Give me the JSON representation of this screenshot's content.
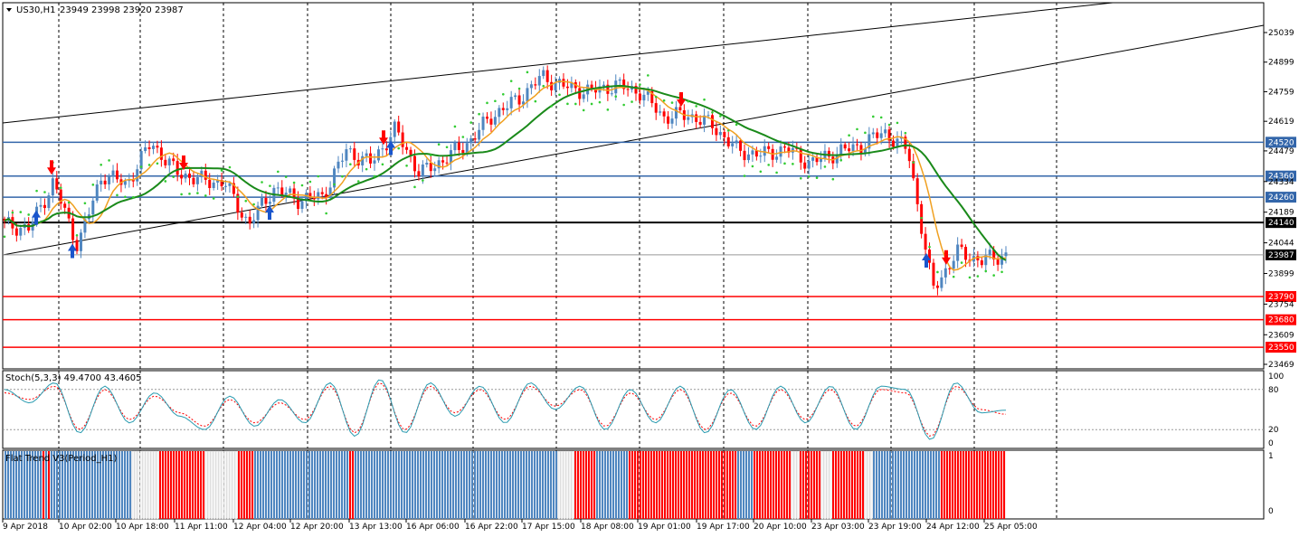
{
  "header": {
    "symbol": "US30,H1",
    "quote": "23949 23998 23920 23987",
    "dropdown_icon": "triangle-down-icon"
  },
  "colors": {
    "bull": "#4f86c0",
    "bear": "#ff0000",
    "ma_fast": "#f0a020",
    "ma_slow": "#1a8a1a",
    "sar": "#33cc33",
    "resistance": "#3366aa",
    "support": "#ff0000",
    "pivot": "#000000",
    "stoch_main": "#2a9bb0",
    "stoch_signal": "#ff0000"
  },
  "chart_data": [
    {
      "type": "candlestick",
      "title": "US30,H1",
      "ylim": [
        23469,
        25100
      ],
      "y_ticks": [
        25039,
        24899,
        24759,
        24619,
        24479,
        24334,
        24189,
        24044,
        23899,
        23754,
        23609,
        23469
      ],
      "x_ticks": [
        "9 Apr 2018",
        "10 Apr 02:00",
        "10 Apr 18:00",
        "11 Apr 11:00",
        "12 Apr 04:00",
        "12 Apr 20:00",
        "13 Apr 13:00",
        "16 Apr 06:00",
        "16 Apr 22:00",
        "17 Apr 15:00",
        "18 Apr 08:00",
        "19 Apr 01:00",
        "19 Apr 17:00",
        "20 Apr 10:00",
        "23 Apr 03:00",
        "23 Apr 19:00",
        "24 Apr 12:00",
        "25 Apr 05:00"
      ],
      "close_path": [
        24130,
        24110,
        24330,
        24030,
        24370,
        24320,
        24520,
        24380,
        24340,
        24330,
        24130,
        24300,
        24250,
        24260,
        24480,
        24420,
        24580,
        24370,
        24440,
        24520,
        24650,
        24720,
        24830,
        24780,
        24760,
        24790,
        24760,
        24640,
        24650,
        24600,
        24480,
        24460,
        24490,
        24420,
        24470,
        24500,
        24570,
        24480,
        23820,
        24000,
        23960,
        23987
      ],
      "horizontal_levels": [
        {
          "label": "24520",
          "value": 24520,
          "kind": "resistance"
        },
        {
          "label": "24360",
          "value": 24360,
          "kind": "resistance"
        },
        {
          "label": "24260",
          "value": 24260,
          "kind": "resistance"
        },
        {
          "label": "24140",
          "value": 24140,
          "kind": "pivot"
        },
        {
          "label": "23790",
          "value": 23790,
          "kind": "support"
        },
        {
          "label": "23680",
          "value": 23680,
          "kind": "support"
        },
        {
          "label": "23550",
          "value": 23550,
          "kind": "support"
        }
      ],
      "current_price": {
        "label": "23987",
        "value": 23987
      }
    },
    {
      "type": "line",
      "title": "Stoch(5,3,3) 49.4700 43.4605",
      "ylim": [
        0,
        100
      ],
      "y_ticks": [
        100,
        80,
        20,
        0
      ],
      "series": [
        {
          "name": "main",
          "values": [
            80,
            60,
            90,
            15,
            85,
            30,
            75,
            40,
            20,
            70,
            25,
            65,
            30,
            90,
            10,
            95,
            15,
            90,
            40,
            85,
            30,
            90,
            50,
            85,
            20,
            80,
            30,
            85,
            15,
            80,
            20,
            85,
            30,
            85,
            20,
            85,
            80,
            5,
            90,
            45,
            49
          ]
        },
        {
          "name": "signal",
          "values": [
            75,
            65,
            85,
            20,
            80,
            35,
            70,
            45,
            25,
            65,
            30,
            60,
            35,
            85,
            15,
            90,
            20,
            85,
            45,
            80,
            35,
            85,
            55,
            80,
            25,
            75,
            35,
            80,
            20,
            75,
            25,
            80,
            35,
            80,
            25,
            80,
            75,
            10,
            85,
            50,
            43
          ]
        }
      ]
    },
    {
      "type": "bar",
      "title": "Flat Trend V3(Period_H1)",
      "ylim": [
        0,
        1
      ],
      "y_ticks": [
        1,
        0
      ],
      "segments": [
        {
          "state": "up",
          "count": 14
        },
        {
          "state": "down",
          "count": 1
        },
        {
          "state": "up",
          "count": 1
        },
        {
          "state": "down",
          "count": 1
        },
        {
          "state": "up",
          "count": 30
        },
        {
          "state": "flat",
          "count": 10
        },
        {
          "state": "down",
          "count": 17
        },
        {
          "state": "flat",
          "count": 12
        },
        {
          "state": "down",
          "count": 6
        },
        {
          "state": "up",
          "count": 35
        },
        {
          "state": "down",
          "count": 2
        },
        {
          "state": "up",
          "count": 75
        },
        {
          "state": "flat",
          "count": 6
        },
        {
          "state": "down",
          "count": 8
        },
        {
          "state": "up",
          "count": 12
        },
        {
          "state": "down",
          "count": 40
        },
        {
          "state": "up",
          "count": 6
        },
        {
          "state": "down",
          "count": 14
        },
        {
          "state": "flat",
          "count": 3
        },
        {
          "state": "down",
          "count": 8
        },
        {
          "state": "flat",
          "count": 4
        },
        {
          "state": "down",
          "count": 12
        },
        {
          "state": "flat",
          "count": 3
        },
        {
          "state": "up",
          "count": 25
        },
        {
          "state": "down",
          "count": 24
        }
      ]
    }
  ]
}
